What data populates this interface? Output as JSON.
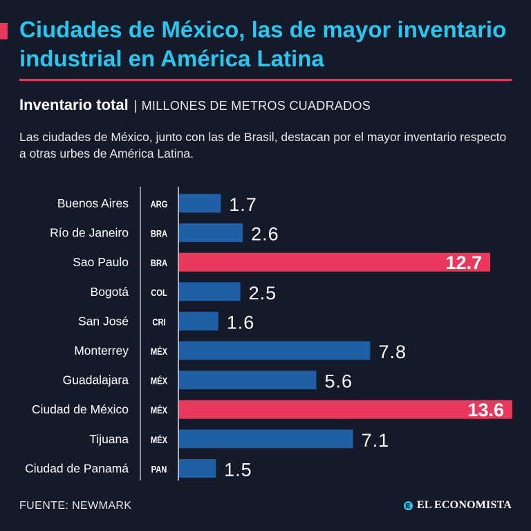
{
  "header": {
    "title": "Ciudades de México, las de mayor inventario industrial en América Latina",
    "subtitle_bold": "Inventario total",
    "subtitle_separator": "|",
    "subtitle_units": "MILLONES DE METROS CUADRADOS",
    "description": "Las ciudades de México, junto con las de Brasil, destacan por el mayor inventario respecto a otras urbes de América Latina."
  },
  "chart_data": {
    "type": "bar",
    "orientation": "horizontal",
    "categories": [
      "Buenos Aires",
      "Río de Janeiro",
      "Sao Paulo",
      "Bogotá",
      "San José",
      "Monterrey",
      "Guadalajara",
      "Ciudad de México",
      "Tijuana",
      "Ciudad de Panamá"
    ],
    "country_codes": [
      "ARG",
      "BRA",
      "BRA",
      "COL",
      "CRI",
      "MÉX",
      "MÉX",
      "MÉX",
      "MÉX",
      "PAN"
    ],
    "values": [
      1.7,
      2.6,
      12.7,
      2.5,
      1.6,
      7.8,
      5.6,
      13.6,
      7.1,
      1.5
    ],
    "labels": [
      "1.7",
      "2.6",
      "12.7",
      "2.5",
      "1.6",
      "7.8",
      "5.6",
      "13.6",
      "7.1",
      "1.5"
    ],
    "highlighted": [
      false,
      false,
      true,
      false,
      false,
      false,
      false,
      true,
      false,
      false
    ],
    "xlim": [
      0,
      13.6
    ],
    "colors": {
      "default": "#1f5fa6",
      "highlight": "#e8395c"
    },
    "title": "Inventario total",
    "xlabel": "Millones de metros cuadrados",
    "ylabel": ""
  },
  "footer": {
    "source": "FUENTE: NEWMARK",
    "brand": "EL ECONOMISTA",
    "brand_icon": "el-economista-logo-icon"
  },
  "colors": {
    "background": "#141a2a",
    "title": "#27c8f0",
    "accent": "#e8395c"
  }
}
